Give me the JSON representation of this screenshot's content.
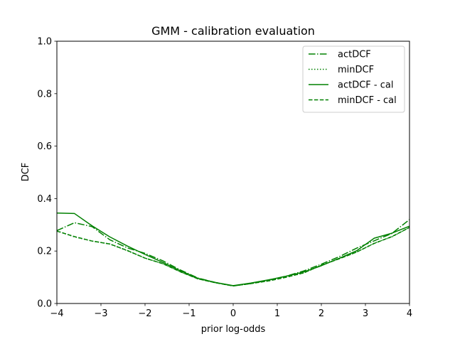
{
  "chart_data": {
    "type": "line",
    "title": "GMM - calibration evaluation",
    "xlabel": "prior log-odds",
    "ylabel": "DCF",
    "xlim": [
      -4,
      4
    ],
    "ylim": [
      0,
      1
    ],
    "xticks": [
      -4,
      -3,
      -2,
      -1,
      0,
      1,
      2,
      3,
      4
    ],
    "xtick_labels": [
      "−4",
      "−3",
      "−2",
      "−1",
      "0",
      "1",
      "2",
      "3",
      "4"
    ],
    "yticks": [
      0.0,
      0.2,
      0.4,
      0.6,
      0.8,
      1.0
    ],
    "ytick_labels": [
      "0.0",
      "0.2",
      "0.4",
      "0.6",
      "0.8",
      "1.0"
    ],
    "grid": false,
    "legend_position": "top-right",
    "color": "#008000",
    "x": [
      -4.0,
      -3.6,
      -3.2,
      -2.8,
      -2.4,
      -2.0,
      -1.6,
      -1.2,
      -0.8,
      -0.4,
      0.0,
      0.4,
      0.8,
      1.2,
      1.6,
      2.0,
      2.4,
      2.8,
      3.2,
      3.6,
      4.0
    ],
    "series": [
      {
        "name": "actDCF",
        "style": "dashdot",
        "values": [
          0.278,
          0.308,
          0.293,
          0.243,
          0.212,
          0.191,
          0.163,
          0.128,
          0.097,
          0.08,
          0.067,
          0.076,
          0.089,
          0.104,
          0.124,
          0.15,
          0.178,
          0.211,
          0.239,
          0.267,
          0.32
        ]
      },
      {
        "name": "minDCF",
        "style": "dotted",
        "values": [
          0.277,
          0.254,
          0.238,
          0.227,
          0.201,
          0.173,
          0.152,
          0.121,
          0.094,
          0.079,
          0.067,
          0.076,
          0.086,
          0.1,
          0.116,
          0.146,
          0.171,
          0.196,
          0.23,
          0.254,
          0.29
        ]
      },
      {
        "name": "actDCF - cal",
        "style": "solid",
        "values": [
          0.345,
          0.343,
          0.296,
          0.254,
          0.219,
          0.187,
          0.157,
          0.125,
          0.096,
          0.08,
          0.068,
          0.078,
          0.09,
          0.104,
          0.12,
          0.144,
          0.172,
          0.201,
          0.249,
          0.268,
          0.295
        ]
      },
      {
        "name": "minDCF - cal",
        "style": "dashed",
        "values": [
          0.276,
          0.255,
          0.238,
          0.227,
          0.202,
          0.173,
          0.152,
          0.121,
          0.094,
          0.079,
          0.067,
          0.076,
          0.086,
          0.1,
          0.117,
          0.146,
          0.17,
          0.196,
          0.229,
          0.255,
          0.29
        ]
      }
    ]
  }
}
